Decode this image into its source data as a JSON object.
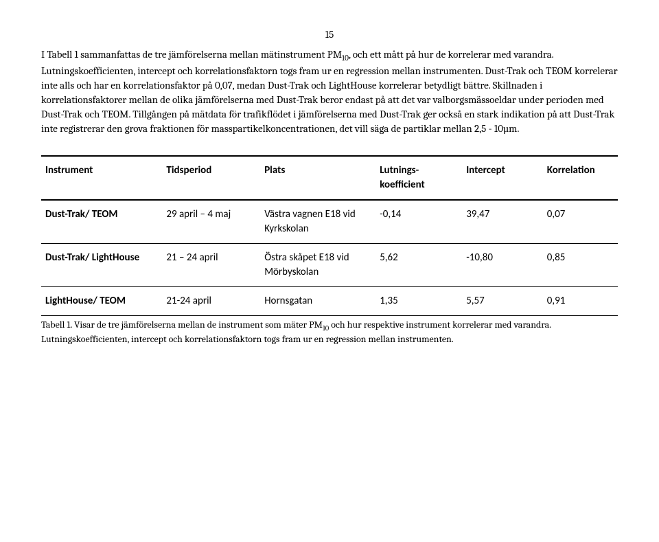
{
  "pageNumber": "15",
  "paragraph": {
    "pre": "I Tabell 1 sammanfattas de tre jämförelserna mellan mätinstrument PM",
    "sub": "10",
    "post": ", och ett mått på hur de korrelerar med varandra. Lutningskoefficienten, intercept och korrelationsfaktorn togs fram ur en regression mellan instrumenten. Dust-Trak och TEOM korrelerar inte alls och har en korrelationsfaktor på 0,07, medan Dust-Trak och LightHouse korrelerar betydligt bättre. Skillnaden i korrelationsfaktorer mellan de olika jämförelserna med Dust-Trak beror endast på att det var valborgsmässoeldar under perioden med Dust-Trak och TEOM. Tillgången på mätdata för trafikflödet i jämförelserna med Dust-Trak ger också en stark indikation på att Dust-Trak inte registrerar den grova fraktionen för masspartikelkoncentrationen, det vill säga de partiklar mellan 2,5 - 10µm."
  },
  "table": {
    "columns": [
      "Instrument",
      "Tidsperiod",
      "Plats",
      "Lutnings-koefficient",
      "Intercept",
      "Korrelation"
    ],
    "colWidths": [
      "21%",
      "17%",
      "20%",
      "15%",
      "14%",
      "13%"
    ],
    "rows": [
      {
        "instrument": "Dust-Trak/ TEOM",
        "tidsperiod": "29 april – 4 maj",
        "plats": "Västra vagnen E18 vid Kyrkskolan",
        "lutning": "-0,14",
        "intercept": "39,47",
        "korrelation": "0,07"
      },
      {
        "instrument": "Dust-Trak/ LightHouse",
        "tidsperiod": "21 – 24 april",
        "plats": "Östra skåpet E18 vid Mörbyskolan",
        "lutning": "5,62",
        "intercept": "-10,80",
        "korrelation": "0,85"
      },
      {
        "instrument": "LightHouse/ TEOM",
        "tidsperiod": "21-24 april",
        "plats": "Hornsgatan",
        "lutning": "1,35",
        "intercept": "5,57",
        "korrelation": "0,91"
      }
    ]
  },
  "caption": {
    "pre": "Tabell 1. Visar de tre jämförelserna mellan de instrument som mäter PM",
    "sub": "10",
    "post": " och hur respektive instrument korrelerar med varandra. Lutningskoefficienten, intercept och korrelationsfaktorn togs fram ur en regression mellan instrumenten."
  }
}
